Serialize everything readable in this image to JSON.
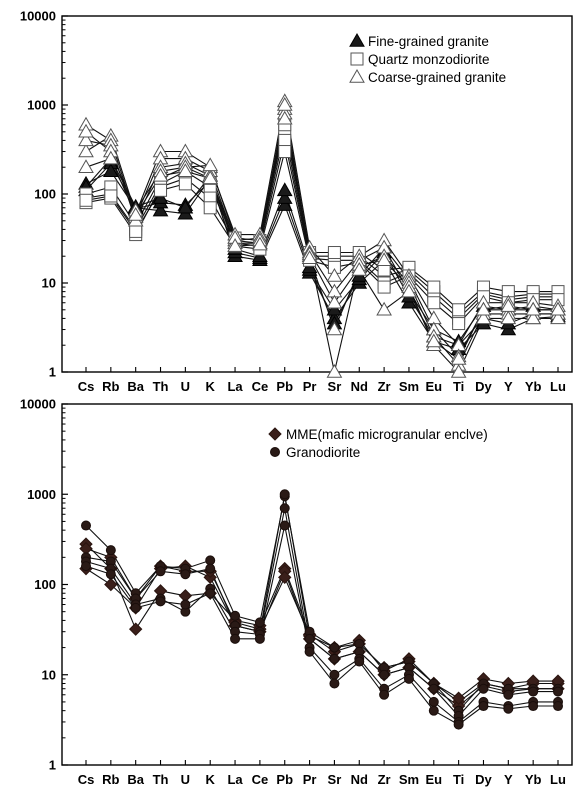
{
  "chart_data": [
    {
      "type": "line",
      "title": "",
      "xlabel": "",
      "ylabel": "",
      "y_scale": "log",
      "ylim": [
        1,
        10000
      ],
      "y_ticks": [
        "1",
        "10",
        "100",
        "1000",
        "10000"
      ],
      "categories": [
        "Cs",
        "Rb",
        "Ba",
        "Th",
        "U",
        "K",
        "La",
        "Ce",
        "Pb",
        "Pr",
        "Sr",
        "Nd",
        "Zr",
        "Sm",
        "Eu",
        "Ti",
        "Dy",
        "Y",
        "Yb",
        "Lu"
      ],
      "legend_position": "top-right",
      "legend": [
        {
          "label": "Fine-grained granite",
          "marker": "filled-triangle"
        },
        {
          "label": "Quartz monzodiorite",
          "marker": "open-square"
        },
        {
          "label": "Coarse-grained granite",
          "marker": "open-triangle"
        }
      ],
      "series": [
        {
          "group": 0,
          "values": [
            110,
            220,
            70,
            65,
            60,
            150,
            20,
            18,
            75,
            13,
            4,
            10,
            18,
            6,
            2.2,
            1.8,
            3.5,
            3.0,
            4.0,
            4.2
          ]
        },
        {
          "group": 0,
          "values": [
            130,
            180,
            68,
            80,
            75,
            140,
            22,
            19,
            90,
            14,
            5,
            11,
            22,
            7,
            2.5,
            2.0,
            4.0,
            3.5,
            4.5,
            4.5
          ]
        },
        {
          "group": 0,
          "values": [
            120,
            250,
            72,
            90,
            70,
            160,
            24,
            20,
            110,
            15,
            3.5,
            12,
            25,
            8,
            3.0,
            2.2,
            5.5,
            5.0,
            5.5,
            5.0
          ]
        },
        {
          "group": 1,
          "values": [
            90,
            100,
            40,
            130,
            180,
            120,
            30,
            28,
            500,
            20,
            20,
            20,
            12,
            14,
            8,
            4.5,
            8,
            7,
            7.5,
            7.5
          ]
        },
        {
          "group": 1,
          "values": [
            80,
            90,
            35,
            120,
            150,
            90,
            28,
            26,
            400,
            19,
            18,
            18,
            10,
            13,
            7,
            4.0,
            7.5,
            6.5,
            7.0,
            7.0
          ]
        },
        {
          "group": 1,
          "values": [
            100,
            120,
            45,
            150,
            200,
            150,
            32,
            30,
            600,
            22,
            22,
            22,
            14,
            15,
            9,
            5.0,
            9,
            8,
            8,
            8
          ]
        },
        {
          "group": 1,
          "values": [
            85,
            95,
            38,
            110,
            130,
            70,
            26,
            24,
            300,
            18,
            15,
            17,
            9,
            12,
            6,
            3.5,
            7,
            6,
            6.5,
            6.5
          ]
        },
        {
          "group": 2,
          "values": [
            300,
            450,
            60,
            300,
            300,
            200,
            35,
            35,
            1100,
            25,
            12,
            20,
            30,
            12,
            4,
            2.0,
            6,
            6,
            6,
            5.5
          ]
        },
        {
          "group": 2,
          "values": [
            600,
            400,
            55,
            250,
            250,
            180,
            30,
            32,
            900,
            22,
            8,
            18,
            25,
            11,
            3,
            1.5,
            5,
            5,
            5,
            5
          ]
        },
        {
          "group": 2,
          "values": [
            400,
            350,
            50,
            200,
            220,
            160,
            28,
            28,
            800,
            20,
            6,
            15,
            20,
            10,
            2.5,
            1.2,
            4.5,
            4.5,
            4.5,
            4.5
          ]
        },
        {
          "group": 2,
          "values": [
            500,
            300,
            65,
            180,
            200,
            210,
            32,
            30,
            700,
            21,
            1.0,
            16,
            18,
            9,
            2.0,
            1.0,
            4,
            4,
            4,
            4
          ]
        },
        {
          "group": 2,
          "values": [
            200,
            250,
            58,
            160,
            180,
            150,
            26,
            27,
            1000,
            19,
            3,
            14,
            5,
            8,
            2.2,
            1.4,
            5,
            5.5,
            5,
            5
          ]
        }
      ]
    },
    {
      "type": "line",
      "title": "",
      "xlabel": "",
      "ylabel": "",
      "y_scale": "log",
      "ylim": [
        1,
        10000
      ],
      "y_ticks": [
        "1",
        "10",
        "100",
        "1000",
        "10000"
      ],
      "categories": [
        "Cs",
        "Rb",
        "Ba",
        "Th",
        "U",
        "K",
        "La",
        "Ce",
        "Pb",
        "Pr",
        "Sr",
        "Nd",
        "Zr",
        "Sm",
        "Eu",
        "Ti",
        "Dy",
        "Y",
        "Yb",
        "Lu"
      ],
      "legend_position": "top-right",
      "legend": [
        {
          "label": "MME(mafic microgranular enclve)",
          "marker": "filled-diamond"
        },
        {
          "label": "Granodiorite",
          "marker": "filled-circle"
        }
      ],
      "series": [
        {
          "group": 0,
          "values": [
            280,
            150,
            32,
            85,
            75,
            80,
            40,
            35,
            150,
            28,
            18,
            22,
            12,
            14,
            8,
            5,
            8,
            7,
            8,
            8
          ]
        },
        {
          "group": 0,
          "values": [
            150,
            100,
            55,
            150,
            160,
            120,
            35,
            30,
            140,
            25,
            15,
            18,
            10,
            12,
            7,
            4.5,
            7.5,
            6.5,
            7,
            7
          ]
        },
        {
          "group": 0,
          "values": [
            250,
            200,
            70,
            160,
            140,
            140,
            38,
            32,
            120,
            27,
            20,
            24,
            11,
            15,
            8,
            5.5,
            9,
            8,
            8.5,
            8.5
          ]
        },
        {
          "group": 1,
          "values": [
            450,
            240,
            80,
            160,
            150,
            185,
            45,
            38,
            950,
            30,
            20,
            22,
            12,
            14,
            8,
            4,
            8,
            7,
            7,
            7
          ]
        },
        {
          "group": 1,
          "values": [
            200,
            180,
            70,
            140,
            130,
            150,
            35,
            30,
            1000,
            25,
            15,
            18,
            10,
            12,
            7,
            3.5,
            7,
            6,
            6.5,
            6.5
          ]
        },
        {
          "group": 1,
          "values": [
            180,
            150,
            60,
            70,
            50,
            90,
            30,
            28,
            700,
            20,
            10,
            15,
            7,
            10,
            5,
            3,
            5,
            4.5,
            5,
            5
          ]
        },
        {
          "group": 1,
          "values": [
            160,
            130,
            55,
            65,
            60,
            80,
            25,
            25,
            450,
            18,
            8,
            14,
            6,
            9,
            4,
            2.8,
            4.5,
            4.2,
            4.5,
            4.5
          ]
        }
      ]
    }
  ]
}
